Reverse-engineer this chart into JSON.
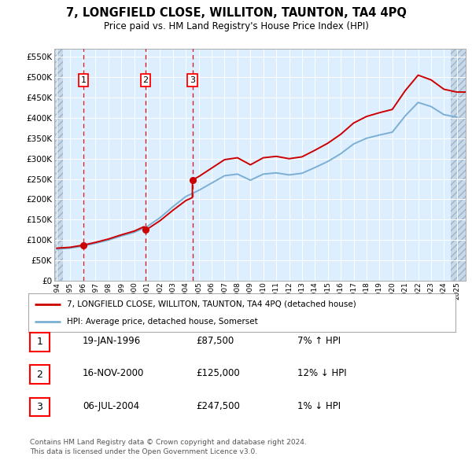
{
  "title": "7, LONGFIELD CLOSE, WILLITON, TAUNTON, TA4 4PQ",
  "subtitle": "Price paid vs. HM Land Registry's House Price Index (HPI)",
  "sales": [
    {
      "label": "1",
      "date_num": 1996.05,
      "price": 87500
    },
    {
      "label": "2",
      "date_num": 2000.88,
      "price": 125000
    },
    {
      "label": "3",
      "date_num": 2004.51,
      "price": 247500
    }
  ],
  "sale_notes": [
    {
      "num": "1",
      "date": "19-JAN-1996",
      "price": "£87,500",
      "note": "7% ↑ HPI"
    },
    {
      "num": "2",
      "date": "16-NOV-2000",
      "price": "£125,000",
      "note": "12% ↓ HPI"
    },
    {
      "num": "3",
      "date": "06-JUL-2004",
      "price": "£247,500",
      "note": "1% ↓ HPI"
    }
  ],
  "hpi_years": [
    1994,
    1995,
    1996,
    1997,
    1998,
    1999,
    2000,
    2001,
    2002,
    2003,
    2004,
    2005,
    2006,
    2007,
    2008,
    2009,
    2010,
    2011,
    2012,
    2013,
    2014,
    2015,
    2016,
    2017,
    2018,
    2019,
    2020,
    2021,
    2022,
    2023,
    2024,
    2025
  ],
  "hpi_values": [
    78000,
    80000,
    85000,
    92000,
    100000,
    110000,
    119000,
    133000,
    155000,
    182000,
    207000,
    222000,
    240000,
    258000,
    262000,
    247000,
    262000,
    265000,
    260000,
    264000,
    278000,
    293000,
    312000,
    336000,
    350000,
    358000,
    365000,
    405000,
    438000,
    428000,
    408000,
    402000
  ],
  "hpi_line_color": "#7bafd4",
  "price_line_color": "#cc0000",
  "dot_color": "#cc0000",
  "dashed_line_color": "#cc0000",
  "legend_label_price": "7, LONGFIELD CLOSE, WILLITON, TAUNTON, TA4 4PQ (detached house)",
  "legend_label_hpi": "HPI: Average price, detached house, Somerset",
  "footer_line1": "Contains HM Land Registry data © Crown copyright and database right 2024.",
  "footer_line2": "This data is licensed under the Open Government Licence v3.0.",
  "ylim_max": 570000,
  "ylim_min": 0,
  "xlim_min": 1993.8,
  "xlim_max": 2025.7,
  "background_chart": "#ddeeff",
  "hatch_color": "#c8d8e8"
}
